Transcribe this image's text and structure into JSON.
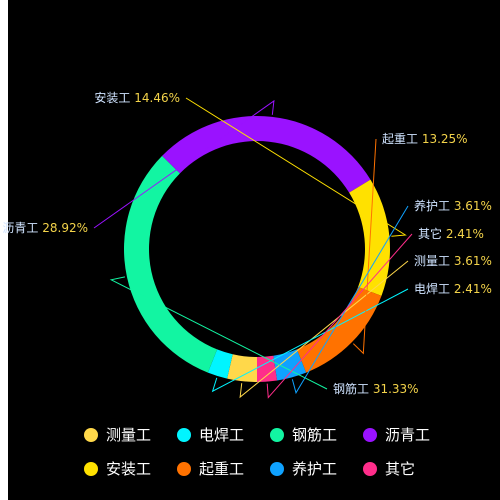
{
  "chart_data": {
    "type": "pie",
    "donut": true,
    "series": [
      {
        "name": "测量工",
        "value": 3.61,
        "label": "3.61%",
        "color": "#ffd84a"
      },
      {
        "name": "电焊工",
        "value": 2.41,
        "label": "2.41%",
        "color": "#00f5ff"
      },
      {
        "name": "钢筋工",
        "value": 31.33,
        "label": "31.33%",
        "color": "#12f5a2"
      },
      {
        "name": "沥青工",
        "value": 28.92,
        "label": "28.92%",
        "color": "#9a12ff"
      },
      {
        "name": "安装工",
        "value": 14.46,
        "label": "14.46%",
        "color": "#ffe100"
      },
      {
        "name": "起重工",
        "value": 13.25,
        "label": "13.25%",
        "color": "#ff7200"
      },
      {
        "name": "养护工",
        "value": 3.61,
        "label": "3.61%",
        "color": "#0fa2ff"
      },
      {
        "name": "其它",
        "value": 2.41,
        "label": "2.41%",
        "color": "#ff2d8a"
      }
    ],
    "legend": {
      "placement": "bottom",
      "items": [
        "测量工",
        "电焊工",
        "钢筋工",
        "沥青工",
        "安装工",
        "起重工",
        "养护工",
        "其它"
      ]
    },
    "background": "#000000"
  }
}
